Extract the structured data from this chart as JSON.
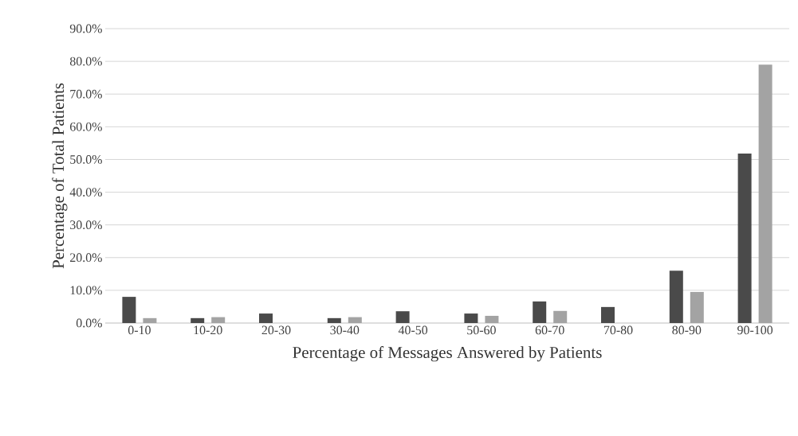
{
  "chart_data": {
    "type": "bar",
    "xlabel": "Percentage of Messages Answered by Patients",
    "ylabel": "Percentage of Total Patients",
    "categories": [
      "0-10",
      "10-20",
      "20-30",
      "30-40",
      "40-50",
      "50-60",
      "60-70",
      "70-80",
      "80-90",
      "90-100"
    ],
    "series": [
      {
        "color": "#4a4a4a",
        "values": [
          8.0,
          1.5,
          2.9,
          1.5,
          3.6,
          2.9,
          6.6,
          4.9,
          16.0,
          51.8
        ]
      },
      {
        "color": "#a3a3a3",
        "values": [
          1.5,
          1.8,
          0,
          1.8,
          0,
          2.2,
          3.7,
          0,
          9.5,
          79.0
        ]
      }
    ],
    "ylim": [
      0,
      90
    ],
    "yticks": [
      {
        "value": 0,
        "label": "0.0%"
      },
      {
        "value": 10,
        "label": "10.0%"
      },
      {
        "value": 20,
        "label": "20.0%"
      },
      {
        "value": 30,
        "label": "30.0%"
      },
      {
        "value": 40,
        "label": "40.0%"
      },
      {
        "value": 50,
        "label": "50.0%"
      },
      {
        "value": 60,
        "label": "60.0%"
      },
      {
        "value": 70,
        "label": "70.0%"
      },
      {
        "value": 80,
        "label": "80.0%"
      },
      {
        "value": 90,
        "label": "90.0%"
      }
    ],
    "grid": "y"
  }
}
